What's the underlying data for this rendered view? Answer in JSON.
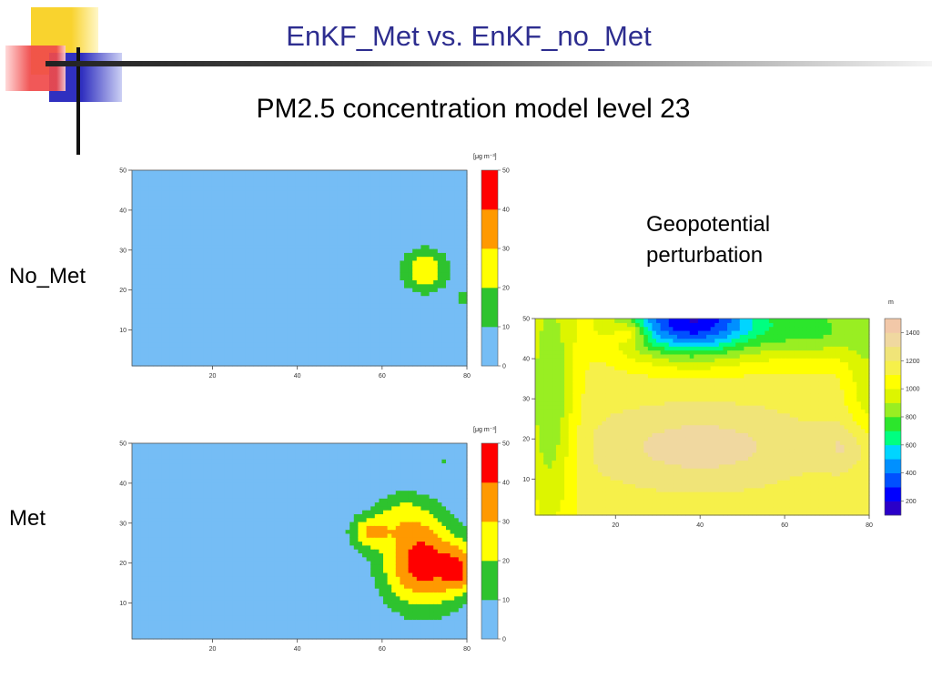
{
  "slide": {
    "title": "EnKF_Met vs. EnKF_no_Met",
    "subtitle": "PM2.5 concentration model level 23",
    "label_top": "No_Met",
    "label_bottom": "Met",
    "geo_label_line1": "Geopotential",
    "geo_label_line2": "perturbation",
    "colors": {
      "title": "#2d2d8f",
      "deco_yellow": "#f9d32e",
      "deco_red": "#f04a4a",
      "deco_blue": "#3030c0"
    }
  },
  "chart_data": [
    {
      "type": "heatmap",
      "name": "pm25-no-met",
      "units": "[μg m⁻³]",
      "xlim": [
        1,
        80
      ],
      "ylim": [
        1,
        50
      ],
      "x_ticks": [
        20,
        40,
        60,
        80
      ],
      "y_ticks": [
        10,
        20,
        30,
        40,
        50
      ],
      "colorbar": {
        "levels": [
          0,
          10,
          20,
          30,
          40,
          50
        ],
        "colors": [
          "#75bdf5",
          "#2ec32e",
          "#ffff00",
          "#ff9900",
          "#ff0000"
        ]
      },
      "background_level": 0,
      "blobs": [
        {
          "x": 70.5,
          "y": 25,
          "rx": 6,
          "ry": 6,
          "peak": 28
        },
        {
          "x": 79.5,
          "y": 18,
          "rx": 2,
          "ry": 2,
          "peak": 14
        }
      ]
    },
    {
      "type": "heatmap",
      "name": "pm25-met",
      "units": "[μg m⁻³]",
      "xlim": [
        1,
        80
      ],
      "ylim": [
        1,
        50
      ],
      "x_ticks": [
        20,
        40,
        60,
        80
      ],
      "y_ticks": [
        10,
        20,
        30,
        40,
        50
      ],
      "colorbar": {
        "levels": [
          0,
          10,
          20,
          30,
          40,
          50
        ],
        "colors": [
          "#75bdf5",
          "#2ec32e",
          "#ffff00",
          "#ff9900",
          "#ff0000"
        ]
      },
      "background_level": 0,
      "blobs": [
        {
          "x": 70,
          "y": 20,
          "rx": 10,
          "ry": 12,
          "peak": 46
        },
        {
          "x": 57,
          "y": 28,
          "rx": 5,
          "ry": 4.5,
          "peak": 24
        },
        {
          "x": 65,
          "y": 33,
          "rx": 7,
          "ry": 6,
          "peak": 14
        },
        {
          "x": 79,
          "y": 18,
          "rx": 4,
          "ry": 6,
          "peak": 25
        },
        {
          "x": 75,
          "y": 46,
          "rx": 1,
          "ry": 1,
          "peak": 11
        }
      ]
    },
    {
      "type": "heatmap",
      "name": "geopotential-perturbation",
      "units": "m",
      "xlim": [
        1,
        80
      ],
      "ylim": [
        1,
        50
      ],
      "x_ticks": [
        20,
        40,
        60,
        80
      ],
      "y_ticks": [
        10,
        20,
        30,
        40,
        50
      ],
      "colorbar": {
        "levels": [
          100,
          200,
          300,
          400,
          500,
          600,
          700,
          800,
          900,
          1000,
          1100,
          1200,
          1300,
          1400,
          1500
        ],
        "tick_labels": [
          200,
          400,
          600,
          800,
          1000,
          1200,
          1400
        ],
        "colors": [
          "#2a00c8",
          "#0000ff",
          "#0050ff",
          "#0090ff",
          "#00d5ff",
          "#00ff80",
          "#2ce62c",
          "#99ee22",
          "#ddf500",
          "#ffff00",
          "#f6f04a",
          "#f0e478",
          "#f0d8a0",
          "#f2c8a8"
        ]
      },
      "background_level": 1150,
      "blobs": [
        {
          "x": 38,
          "y": 50,
          "rx": 17,
          "ry": 9,
          "peak": -950
        },
        {
          "x": 23,
          "y": 47,
          "rx": 4,
          "ry": 3,
          "peak": 250
        },
        {
          "x": 4,
          "y": 30,
          "rx": 6,
          "ry": 34,
          "peak": -350
        },
        {
          "x": 68,
          "y": 48,
          "rx": 14,
          "ry": 8,
          "peak": -350
        },
        {
          "x": 80,
          "y": 34,
          "rx": 5,
          "ry": 18,
          "peak": -200
        },
        {
          "x": 40,
          "y": 18,
          "rx": 25,
          "ry": 10,
          "peak": 200
        },
        {
          "x": 75,
          "y": 18,
          "rx": 6,
          "ry": 6,
          "peak": 150
        }
      ]
    }
  ]
}
